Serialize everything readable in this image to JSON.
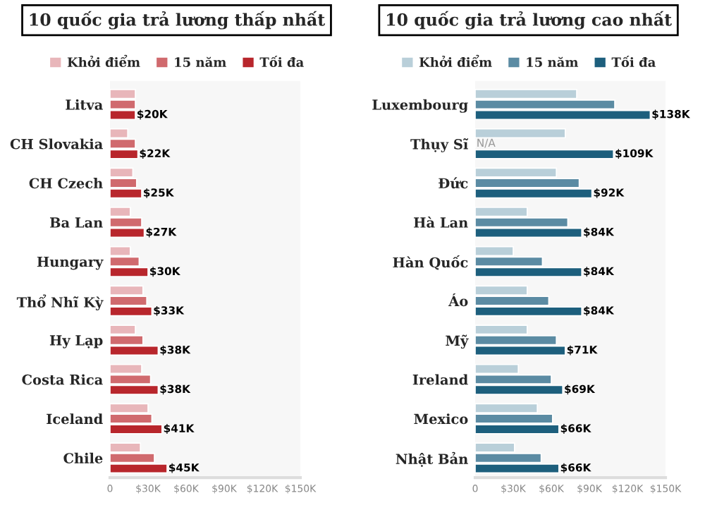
{
  "chart_data": [
    {
      "type": "bar",
      "orientation": "horizontal",
      "title": "10 quốc gia trả lương thấp nhất",
      "legend": "top",
      "grid": false,
      "categories": [
        "Litva",
        "CH Slovakia",
        "CH Czech",
        "Ba Lan",
        "Hungary",
        "Thổ Nhĩ Kỳ",
        "Hy Lạp",
        "Costa Rica",
        "Iceland",
        "Chile"
      ],
      "xlim": [
        0,
        150
      ],
      "xticks": [
        0,
        {
          "value": 30,
          "label": "$30K"
        },
        {
          "value": 60,
          "label": "$60K"
        },
        {
          "value": 90,
          "label": "$90K"
        },
        {
          "value": 120,
          "label": "$120K"
        },
        {
          "value": 150,
          "label": "$150K"
        }
      ],
      "series": [
        {
          "name": "Khởi điểm",
          "color": "#e8b6ba",
          "values": [
            20,
            14,
            18,
            16,
            16,
            26,
            20,
            25,
            30,
            24
          ]
        },
        {
          "name": "15 năm",
          "color": "#d06a6e",
          "values": [
            20,
            20,
            21,
            25,
            23,
            29,
            26,
            32,
            33,
            35
          ]
        },
        {
          "name": "Tối đa",
          "color": "#b8262c",
          "values": [
            20,
            22,
            25,
            27,
            30,
            33,
            38,
            38,
            41,
            45
          ],
          "value_labels": [
            "$20K",
            "$22K",
            "$25K",
            "$27K",
            "$30K",
            "$33K",
            "$38K",
            "$38K",
            "$41K",
            "$45K"
          ]
        }
      ]
    },
    {
      "type": "bar",
      "orientation": "horizontal",
      "title": "10 quốc gia trả lương cao nhất",
      "legend": "top",
      "grid": false,
      "categories": [
        "Luxembourg",
        "Thụy Sĩ",
        "Đức",
        "Hà Lan",
        "Hàn Quốc",
        "Áo",
        "Mỹ",
        "Ireland",
        "Mexico",
        "Nhật Bản"
      ],
      "xlim": [
        0,
        150
      ],
      "xticks": [
        0,
        {
          "value": 30,
          "label": "$30K"
        },
        {
          "value": 60,
          "label": "$60K"
        },
        {
          "value": 90,
          "label": "$90K"
        },
        {
          "value": 120,
          "label": "$120K"
        },
        {
          "value": 150,
          "label": "$150K"
        }
      ],
      "series": [
        {
          "name": "Khởi điểm",
          "color": "#b9cfd9",
          "values": [
            80,
            71,
            64,
            41,
            30,
            41,
            41,
            34,
            49,
            31
          ]
        },
        {
          "name": "15 năm",
          "color": "#5b8ba3",
          "values": [
            110,
            null,
            82,
            73,
            53,
            58,
            64,
            60,
            61,
            52
          ],
          "value_labels": [
            null,
            "N/A",
            null,
            null,
            null,
            null,
            null,
            null,
            null,
            null
          ]
        },
        {
          "name": "Tối đa",
          "color": "#1d5f7d",
          "values": [
            138,
            109,
            92,
            84,
            84,
            84,
            71,
            69,
            66,
            66
          ],
          "value_labels": [
            "$138K",
            "$109K",
            "$92K",
            "$84K",
            "$84K",
            "$84K",
            "$71K",
            "$69K",
            "$66K",
            "$66K"
          ]
        }
      ]
    }
  ]
}
